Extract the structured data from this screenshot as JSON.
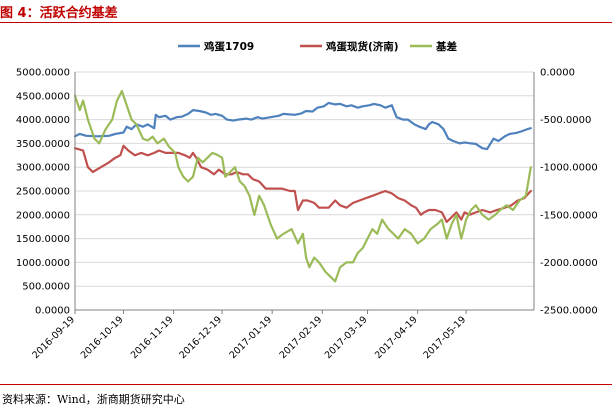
{
  "header": {
    "figure_title": "图 4：活跃合约基差"
  },
  "footer": {
    "source": "资料来源：Wind，浙商期货研究中心"
  },
  "chart_data": {
    "type": "line",
    "title": "",
    "xlabel": "",
    "ylabel_left": "",
    "ylabel_right": "",
    "legend_position": "top",
    "gridlines": true,
    "x_start": "2016-09-19",
    "x_end": "2017-06-30",
    "x_tick_labels": [
      "2016-09-19",
      "2016-10-19",
      "2016-11-19",
      "2016-12-19",
      "2017-01-19",
      "2017-02-19",
      "2017-03-19",
      "2017-04-19",
      "2017-05-19"
    ],
    "y_left": {
      "min": 0,
      "max": 5000,
      "ticks": [
        "0.0000",
        "500.0000",
        "1000.0000",
        "1500.0000",
        "2000.0000",
        "2500.0000",
        "3000.0000",
        "3500.0000",
        "4000.0000",
        "4500.0000",
        "5000.0000"
      ]
    },
    "y_right": {
      "min": -2500,
      "max": 0,
      "ticks": [
        "0.0000",
        "-500.0000",
        "-1000.0000",
        "-1500.0000",
        "-2000.0000",
        "-2500.0000"
      ]
    },
    "series": [
      {
        "name": "鸡蛋1709",
        "axis": "left",
        "color": "#4f81bd",
        "points": [
          [
            "2016-09-19",
            3650
          ],
          [
            "2016-09-22",
            3700
          ],
          [
            "2016-09-26",
            3660
          ],
          [
            "2016-10-03",
            3650
          ],
          [
            "2016-10-10",
            3660
          ],
          [
            "2016-10-14",
            3700
          ],
          [
            "2016-10-19",
            3730
          ],
          [
            "2016-10-21",
            3850
          ],
          [
            "2016-10-24",
            3800
          ],
          [
            "2016-10-27",
            3900
          ],
          [
            "2016-10-31",
            3850
          ],
          [
            "2016-11-03",
            3900
          ],
          [
            "2016-11-07",
            3820
          ],
          [
            "2016-11-08",
            4100
          ],
          [
            "2016-11-10",
            4050
          ],
          [
            "2016-11-14",
            4080
          ],
          [
            "2016-11-17",
            4000
          ],
          [
            "2016-11-21",
            4050
          ],
          [
            "2016-11-24",
            4060
          ],
          [
            "2016-11-28",
            4120
          ],
          [
            "2016-12-01",
            4200
          ],
          [
            "2016-12-05",
            4180
          ],
          [
            "2016-12-09",
            4150
          ],
          [
            "2016-12-12",
            4100
          ],
          [
            "2016-12-15",
            4120
          ],
          [
            "2016-12-19",
            4080
          ],
          [
            "2016-12-22",
            4000
          ],
          [
            "2016-12-26",
            3980
          ],
          [
            "2016-12-29",
            4000
          ],
          [
            "2017-01-03",
            4020
          ],
          [
            "2017-01-06",
            4000
          ],
          [
            "2017-01-10",
            4050
          ],
          [
            "2017-01-13",
            4020
          ],
          [
            "2017-01-18",
            4050
          ],
          [
            "2017-01-23",
            4080
          ],
          [
            "2017-01-26",
            4120
          ],
          [
            "2017-02-02",
            4100
          ],
          [
            "2017-02-06",
            4130
          ],
          [
            "2017-02-09",
            4180
          ],
          [
            "2017-02-13",
            4170
          ],
          [
            "2017-02-16",
            4250
          ],
          [
            "2017-02-20",
            4280
          ],
          [
            "2017-02-23",
            4350
          ],
          [
            "2017-02-27",
            4320
          ],
          [
            "2017-03-02",
            4330
          ],
          [
            "2017-03-06",
            4280
          ],
          [
            "2017-03-09",
            4300
          ],
          [
            "2017-03-13",
            4250
          ],
          [
            "2017-03-16",
            4280
          ],
          [
            "2017-03-20",
            4300
          ],
          [
            "2017-03-23",
            4330
          ],
          [
            "2017-03-27",
            4300
          ],
          [
            "2017-03-30",
            4250
          ],
          [
            "2017-04-03",
            4300
          ],
          [
            "2017-04-06",
            4050
          ],
          [
            "2017-04-10",
            4000
          ],
          [
            "2017-04-13",
            4000
          ],
          [
            "2017-04-17",
            3900
          ],
          [
            "2017-04-20",
            3850
          ],
          [
            "2017-04-24",
            3800
          ],
          [
            "2017-04-26",
            3900
          ],
          [
            "2017-04-28",
            3950
          ],
          [
            "2017-05-02",
            3900
          ],
          [
            "2017-05-05",
            3800
          ],
          [
            "2017-05-08",
            3600
          ],
          [
            "2017-05-11",
            3550
          ],
          [
            "2017-05-15",
            3500
          ],
          [
            "2017-05-18",
            3520
          ],
          [
            "2017-05-22",
            3500
          ],
          [
            "2017-05-25",
            3490
          ],
          [
            "2017-05-29",
            3400
          ],
          [
            "2017-06-01",
            3380
          ],
          [
            "2017-06-05",
            3600
          ],
          [
            "2017-06-08",
            3550
          ],
          [
            "2017-06-12",
            3650
          ],
          [
            "2017-06-15",
            3700
          ],
          [
            "2017-06-19",
            3720
          ],
          [
            "2017-06-22",
            3750
          ],
          [
            "2017-06-26",
            3800
          ],
          [
            "2017-06-28",
            3820
          ]
        ]
      },
      {
        "name": "鸡蛋现货(济南)",
        "axis": "left",
        "color": "#c0504d",
        "points": [
          [
            "2016-09-19",
            3400
          ],
          [
            "2016-09-24",
            3350
          ],
          [
            "2016-09-27",
            3000
          ],
          [
            "2016-09-30",
            2900
          ],
          [
            "2016-10-05",
            3000
          ],
          [
            "2016-10-10",
            3100
          ],
          [
            "2016-10-14",
            3200
          ],
          [
            "2016-10-17",
            3250
          ],
          [
            "2016-10-19",
            3450
          ],
          [
            "2016-10-22",
            3350
          ],
          [
            "2016-10-26",
            3250
          ],
          [
            "2016-10-30",
            3300
          ],
          [
            "2016-11-03",
            3250
          ],
          [
            "2016-11-07",
            3300
          ],
          [
            "2016-11-10",
            3350
          ],
          [
            "2016-11-14",
            3300
          ],
          [
            "2016-11-18",
            3300
          ],
          [
            "2016-11-22",
            3300
          ],
          [
            "2016-11-26",
            3250
          ],
          [
            "2016-11-29",
            3200
          ],
          [
            "2016-12-01",
            3300
          ],
          [
            "2016-12-03",
            3200
          ],
          [
            "2016-12-06",
            3000
          ],
          [
            "2016-12-10",
            2950
          ],
          [
            "2016-12-14",
            2850
          ],
          [
            "2016-12-17",
            2950
          ],
          [
            "2016-12-21",
            2850
          ],
          [
            "2016-12-25",
            2850
          ],
          [
            "2016-12-28",
            2900
          ],
          [
            "2017-01-01",
            2850
          ],
          [
            "2017-01-04",
            2850
          ],
          [
            "2017-01-07",
            2750
          ],
          [
            "2017-01-11",
            2700
          ],
          [
            "2017-01-15",
            2550
          ],
          [
            "2017-01-20",
            2550
          ],
          [
            "2017-01-25",
            2550
          ],
          [
            "2017-01-30",
            2500
          ],
          [
            "2017-02-02",
            2500
          ],
          [
            "2017-02-04",
            2100
          ],
          [
            "2017-02-07",
            2300
          ],
          [
            "2017-02-10",
            2300
          ],
          [
            "2017-02-14",
            2250
          ],
          [
            "2017-02-17",
            2150
          ],
          [
            "2017-02-23",
            2150
          ],
          [
            "2017-02-27",
            2300
          ],
          [
            "2017-03-02",
            2200
          ],
          [
            "2017-03-06",
            2150
          ],
          [
            "2017-03-10",
            2250
          ],
          [
            "2017-03-14",
            2300
          ],
          [
            "2017-03-18",
            2350
          ],
          [
            "2017-03-22",
            2400
          ],
          [
            "2017-03-26",
            2450
          ],
          [
            "2017-03-30",
            2500
          ],
          [
            "2017-04-03",
            2450
          ],
          [
            "2017-04-07",
            2350
          ],
          [
            "2017-04-11",
            2300
          ],
          [
            "2017-04-15",
            2200
          ],
          [
            "2017-04-18",
            2150
          ],
          [
            "2017-04-21",
            2000
          ],
          [
            "2017-04-23",
            2050
          ],
          [
            "2017-04-26",
            2100
          ],
          [
            "2017-04-30",
            2100
          ],
          [
            "2017-05-04",
            2050
          ],
          [
            "2017-05-07",
            1850
          ],
          [
            "2017-05-10",
            1950
          ],
          [
            "2017-05-13",
            2050
          ],
          [
            "2017-05-16",
            1900
          ],
          [
            "2017-05-18",
            2050
          ],
          [
            "2017-05-21",
            2000
          ],
          [
            "2017-05-25",
            2050
          ],
          [
            "2017-05-29",
            2100
          ],
          [
            "2017-06-03",
            2050
          ],
          [
            "2017-06-07",
            2100
          ],
          [
            "2017-06-12",
            2150
          ],
          [
            "2017-06-16",
            2200
          ],
          [
            "2017-06-20",
            2300
          ],
          [
            "2017-06-24",
            2350
          ],
          [
            "2017-06-28",
            2500
          ]
        ]
      },
      {
        "name": "基差",
        "axis": "right",
        "color": "#9bbb59",
        "points": [
          [
            "2016-09-19",
            -250
          ],
          [
            "2016-09-22",
            -400
          ],
          [
            "2016-09-24",
            -300
          ],
          [
            "2016-09-27",
            -500
          ],
          [
            "2016-10-01",
            -700
          ],
          [
            "2016-10-04",
            -750
          ],
          [
            "2016-10-08",
            -600
          ],
          [
            "2016-10-12",
            -500
          ],
          [
            "2016-10-15",
            -300
          ],
          [
            "2016-10-18",
            -200
          ],
          [
            "2016-10-21",
            -350
          ],
          [
            "2016-10-24",
            -500
          ],
          [
            "2016-10-27",
            -550
          ],
          [
            "2016-10-31",
            -700
          ],
          [
            "2016-11-03",
            -720
          ],
          [
            "2016-11-06",
            -680
          ],
          [
            "2016-11-09",
            -750
          ],
          [
            "2016-11-13",
            -700
          ],
          [
            "2016-11-16",
            -780
          ],
          [
            "2016-11-20",
            -850
          ],
          [
            "2016-11-22",
            -1000
          ],
          [
            "2016-11-25",
            -1100
          ],
          [
            "2016-11-28",
            -1150
          ],
          [
            "2016-12-01",
            -1100
          ],
          [
            "2016-12-04",
            -900
          ],
          [
            "2016-12-07",
            -950
          ],
          [
            "2016-12-10",
            -900
          ],
          [
            "2016-12-13",
            -850
          ],
          [
            "2016-12-16",
            -870
          ],
          [
            "2016-12-19",
            -900
          ],
          [
            "2016-12-21",
            -1100
          ],
          [
            "2016-12-24",
            -1050
          ],
          [
            "2016-12-27",
            -1000
          ],
          [
            "2016-12-30",
            -1150
          ],
          [
            "2017-01-02",
            -1200
          ],
          [
            "2017-01-05",
            -1300
          ],
          [
            "2017-01-08",
            -1500
          ],
          [
            "2017-01-11",
            -1300
          ],
          [
            "2017-01-14",
            -1400
          ],
          [
            "2017-01-18",
            -1600
          ],
          [
            "2017-01-22",
            -1750
          ],
          [
            "2017-01-26",
            -1700
          ],
          [
            "2017-01-31",
            -1650
          ],
          [
            "2017-02-04",
            -1800
          ],
          [
            "2017-02-07",
            -1700
          ],
          [
            "2017-02-09",
            -1950
          ],
          [
            "2017-02-11",
            -2050
          ],
          [
            "2017-02-14",
            -1950
          ],
          [
            "2017-02-17",
            -2000
          ],
          [
            "2017-02-21",
            -2100
          ],
          [
            "2017-02-24",
            -2150
          ],
          [
            "2017-02-27",
            -2200
          ],
          [
            "2017-03-02",
            -2050
          ],
          [
            "2017-03-06",
            -2000
          ],
          [
            "2017-03-10",
            -2000
          ],
          [
            "2017-03-13",
            -1900
          ],
          [
            "2017-03-16",
            -1850
          ],
          [
            "2017-03-19",
            -1750
          ],
          [
            "2017-03-22",
            -1650
          ],
          [
            "2017-03-25",
            -1700
          ],
          [
            "2017-03-28",
            -1550
          ],
          [
            "2017-04-01",
            -1650
          ],
          [
            "2017-04-04",
            -1700
          ],
          [
            "2017-04-07",
            -1750
          ],
          [
            "2017-04-11",
            -1650
          ],
          [
            "2017-04-15",
            -1700
          ],
          [
            "2017-04-19",
            -1800
          ],
          [
            "2017-04-23",
            -1750
          ],
          [
            "2017-04-27",
            -1650
          ],
          [
            "2017-05-01",
            -1600
          ],
          [
            "2017-05-04",
            -1550
          ],
          [
            "2017-05-07",
            -1750
          ],
          [
            "2017-05-10",
            -1600
          ],
          [
            "2017-05-13",
            -1500
          ],
          [
            "2017-05-16",
            -1750
          ],
          [
            "2017-05-19",
            -1550
          ],
          [
            "2017-05-22",
            -1450
          ],
          [
            "2017-05-25",
            -1400
          ],
          [
            "2017-05-29",
            -1500
          ],
          [
            "2017-06-02",
            -1550
          ],
          [
            "2017-06-06",
            -1500
          ],
          [
            "2017-06-09",
            -1450
          ],
          [
            "2017-06-13",
            -1400
          ],
          [
            "2017-06-17",
            -1450
          ],
          [
            "2017-06-21",
            -1350
          ],
          [
            "2017-06-25",
            -1300
          ],
          [
            "2017-06-28",
            -1000
          ]
        ]
      }
    ]
  }
}
